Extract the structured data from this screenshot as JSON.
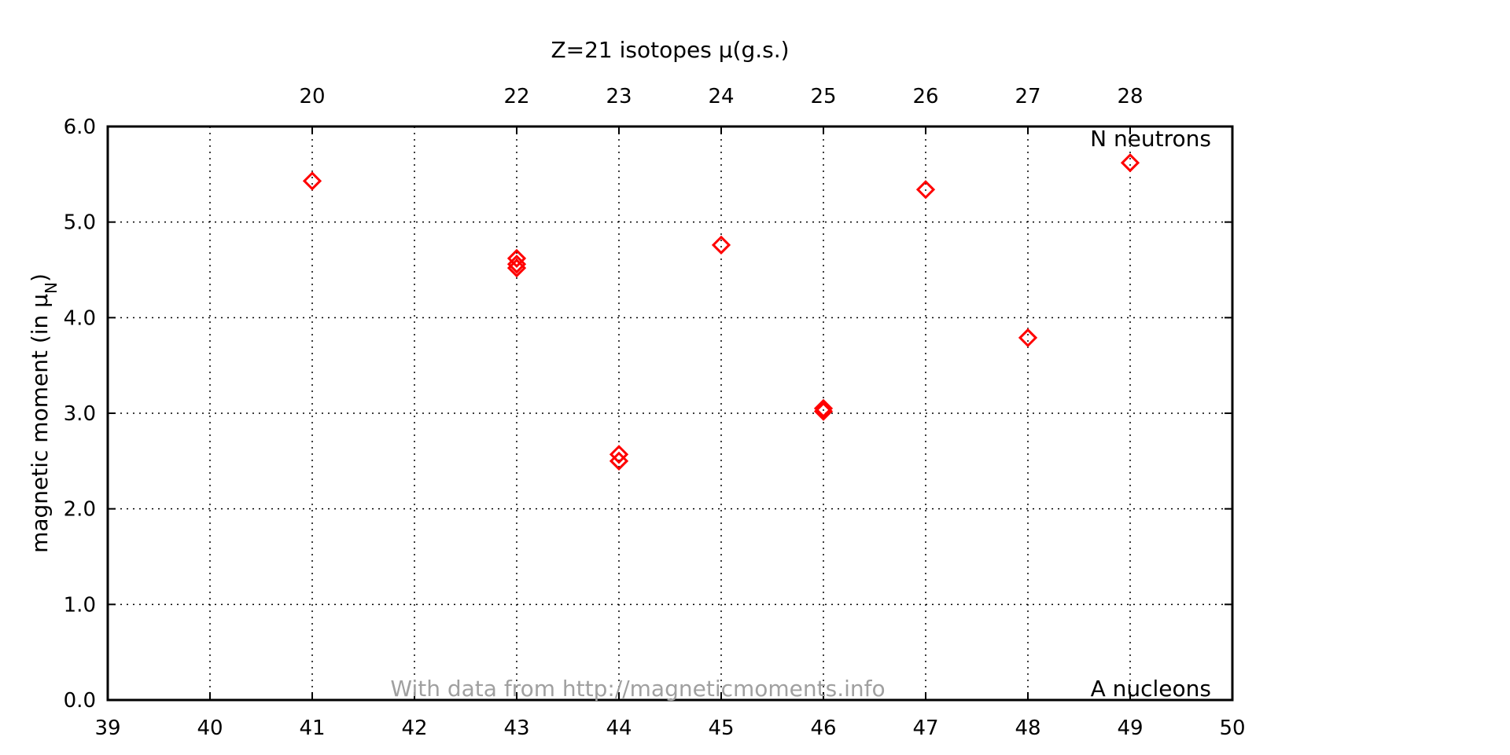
{
  "chart_data": {
    "type": "scatter",
    "title": "Z=21 isotopes μ(g.s.)",
    "ylabel_main": "magnetic moment (in μ",
    "ylabel_sub": "N",
    "ylabel_close": ")",
    "x_axis_label": "A nucleons",
    "top_axis_label": "N neutrons",
    "credit": "With data from http://magneticmoments.info",
    "xlim": [
      39,
      50
    ],
    "ylim": [
      0,
      6
    ],
    "x_ticks": [
      39,
      40,
      41,
      42,
      43,
      44,
      45,
      46,
      47,
      48,
      49,
      50
    ],
    "x_tick_labels": [
      "39",
      "40",
      "41",
      "42",
      "43",
      "44",
      "45",
      "46",
      "47",
      "48",
      "49",
      "50"
    ],
    "y_ticks": [
      0,
      1,
      2,
      3,
      4,
      5,
      6
    ],
    "y_tick_labels": [
      "0.0",
      "1.0",
      "2.0",
      "3.0",
      "4.0",
      "5.0",
      "6.0"
    ],
    "top_ticks": [
      41,
      43,
      44,
      45,
      46,
      47,
      48,
      49
    ],
    "top_tick_labels": [
      "20",
      "22",
      "23",
      "24",
      "25",
      "26",
      "27",
      "28"
    ],
    "grid": true,
    "marker": "diamond",
    "marker_color": "#ff0000",
    "points": [
      {
        "x": 41,
        "y": 5.43
      },
      {
        "x": 43,
        "y": 4.62
      },
      {
        "x": 43,
        "y": 4.56
      },
      {
        "x": 43,
        "y": 4.52
      },
      {
        "x": 44,
        "y": 2.57
      },
      {
        "x": 44,
        "y": 2.5
      },
      {
        "x": 45,
        "y": 4.76
      },
      {
        "x": 46,
        "y": 3.05
      },
      {
        "x": 46,
        "y": 3.02
      },
      {
        "x": 47,
        "y": 5.34
      },
      {
        "x": 48,
        "y": 3.79
      },
      {
        "x": 49,
        "y": 5.62
      }
    ]
  }
}
